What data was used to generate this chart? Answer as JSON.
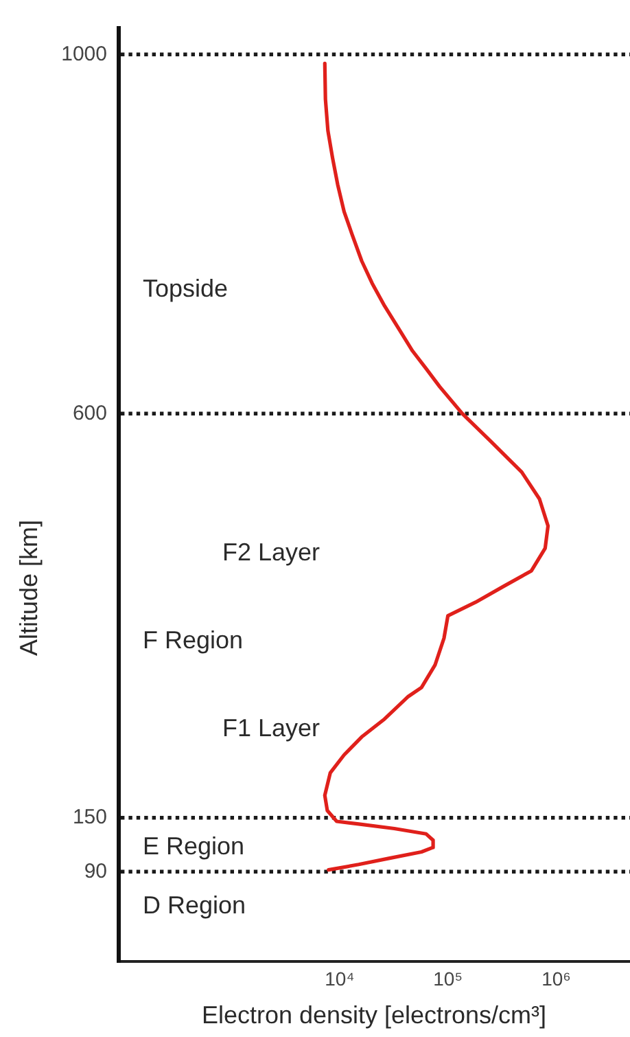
{
  "chart_data": {
    "type": "line",
    "xlabel": "Electron density [electrons/cm³]",
    "ylabel": "Altitude [km]",
    "series": [
      {
        "color": "#e0201b",
        "x": [
          7300,
          7400,
          7800,
          8600,
          9600,
          11000,
          13000,
          16000,
          20000,
          26000,
          35000,
          47000,
          63000,
          84000,
          136000,
          245000,
          480000,
          700000,
          840000,
          790000,
          590000,
          330000,
          180000,
          100000,
          92000,
          76000,
          57000,
          43000,
          26000,
          16000,
          11000,
          8200,
          7300,
          7700,
          9400,
          15000,
          32000,
          63000,
          73000,
          73000,
          57000,
          29000,
          15000,
          7900
        ],
        "values": [
          990,
          950,
          915,
          885,
          855,
          825,
          800,
          770,
          745,
          720,
          695,
          670,
          650,
          630,
          600,
          570,
          535,
          505,
          475,
          450,
          425,
          408,
          390,
          375,
          350,
          320,
          295,
          285,
          260,
          240,
          220,
          200,
          175,
          158,
          146,
          143,
          138,
          132,
          125,
          117,
          112,
          105,
          98,
          92
        ]
      }
    ],
    "log": "x",
    "xlim": [
      90,
      4800000
    ],
    "xticks": [
      {
        "value": 10000,
        "label": "10⁴"
      },
      {
        "value": 100000,
        "label": "10⁵"
      },
      {
        "value": 1000000,
        "label": "10⁶"
      }
    ],
    "ylim": [
      -10,
      1030
    ],
    "yticks": [
      1000,
      600,
      150,
      90
    ],
    "ref_lines": [
      {
        "axis": "y",
        "value": 1000,
        "line_style": "dotted",
        "color": "#1a1a1a"
      },
      {
        "axis": "y",
        "value": 600,
        "line_style": "dotted",
        "color": "#1a1a1a"
      },
      {
        "axis": "y",
        "value": 150,
        "line_style": "dotted",
        "color": "#1a1a1a"
      },
      {
        "axis": "y",
        "value": 90,
        "line_style": "dotted",
        "color": "#1a1a1a"
      }
    ],
    "annotations": [
      "Topside",
      "F2 Layer",
      "F Region",
      "F1 Layer",
      "E Region",
      "D Region"
    ],
    "marker": "none"
  }
}
